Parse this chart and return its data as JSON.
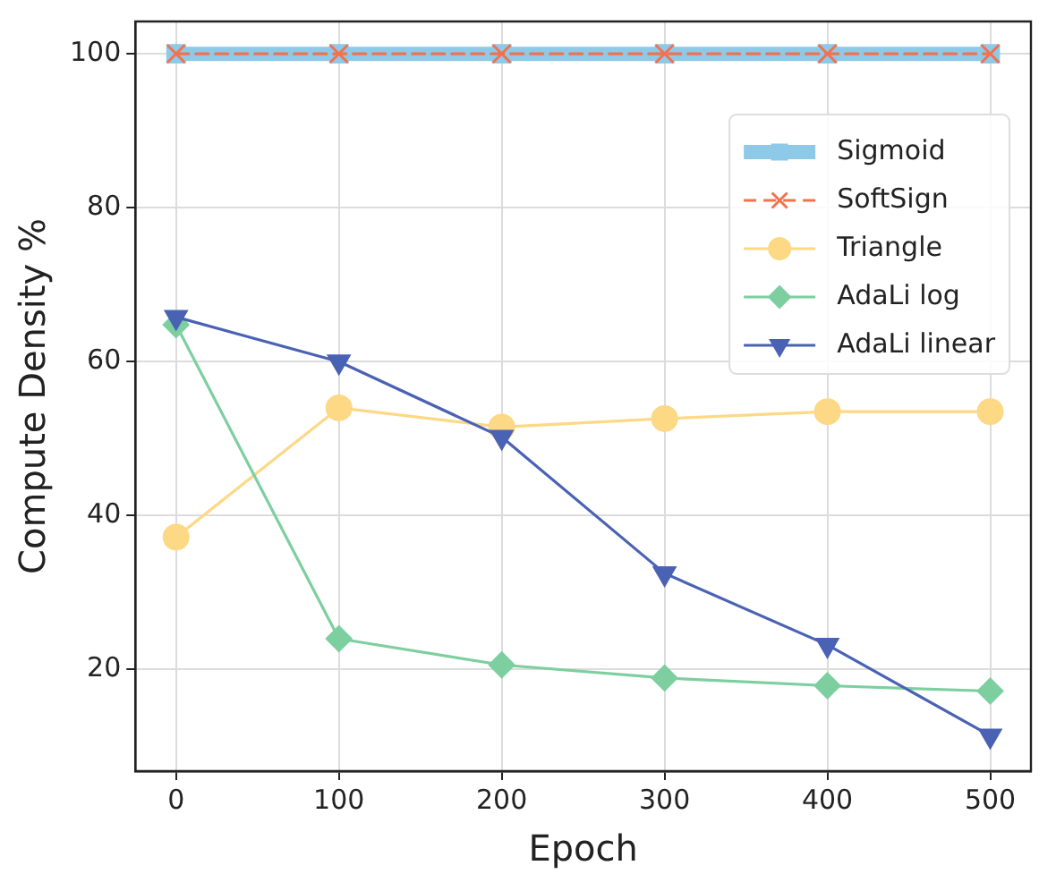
{
  "chart_data": {
    "type": "line",
    "xlabel": "Epoch",
    "ylabel": "Compute Density %",
    "x": [
      0,
      100,
      200,
      300,
      400,
      500
    ],
    "xlim": [
      -25,
      525
    ],
    "xticks": [
      0,
      100,
      200,
      300,
      400,
      500
    ],
    "ylim": [
      6.8,
      104.2
    ],
    "yticks": [
      20,
      40,
      60,
      80,
      100
    ],
    "grid": true,
    "legend": "right",
    "series": [
      {
        "name": "Sigmoid",
        "color": "#8ec9e8",
        "marker": "square",
        "line_style": "solid",
        "values": [
          100,
          100,
          100,
          100,
          100,
          100
        ]
      },
      {
        "name": "SoftSign",
        "color": "#f4714c",
        "marker": "cross",
        "line_style": "dashed",
        "values": [
          100,
          100,
          100,
          100,
          100,
          100
        ]
      },
      {
        "name": "Triangle",
        "color": "#fdd885",
        "marker": "circle",
        "line_style": "solid",
        "values": [
          37.2,
          54,
          51.5,
          52.6,
          53.5,
          53.5
        ]
      },
      {
        "name": "AdaLi log",
        "color": "#7dcfa0",
        "marker": "diamond",
        "line_style": "solid",
        "values": [
          64.8,
          24,
          20.6,
          18.9,
          17.9,
          17.2
        ]
      },
      {
        "name": "AdaLi linear",
        "color": "#4a62b4",
        "marker": "triangle",
        "line_style": "solid",
        "values": [
          65.8,
          60,
          50.2,
          32.5,
          23.2,
          11.4
        ]
      }
    ]
  }
}
